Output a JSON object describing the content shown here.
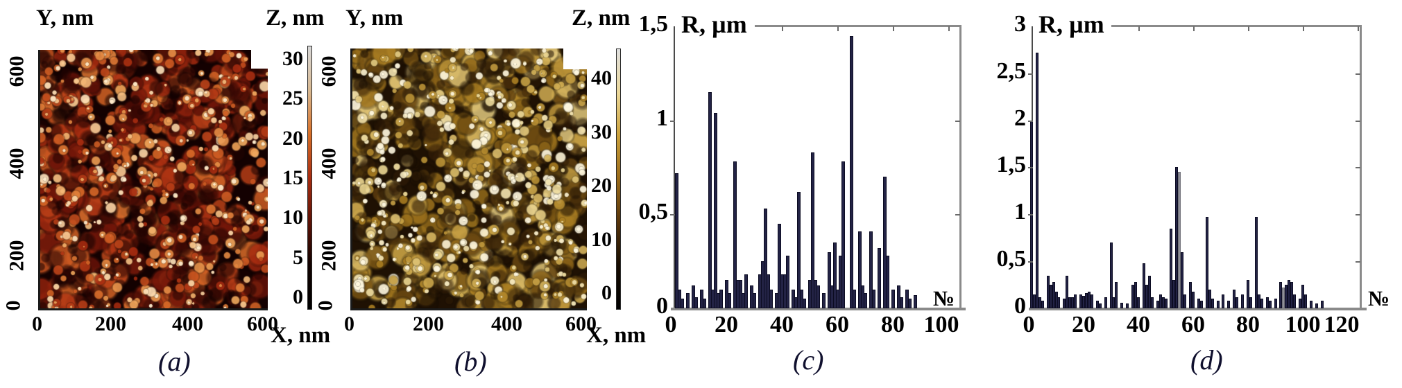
{
  "figure": {
    "description": "AFM surface images and particle radius distributions",
    "background": "#ffffff"
  },
  "panel_a": {
    "caption": "(a)",
    "y_axis_label": "Y, nm",
    "x_axis_label": "X, nm",
    "z_axis_label": "Z, nm",
    "y_ticks": [
      "600",
      "400",
      "200",
      "0"
    ],
    "x_ticks": [
      "0",
      "200",
      "400",
      "600"
    ],
    "z_ticks": [
      "30",
      "25",
      "20",
      "15",
      "10",
      "5",
      "0"
    ],
    "z_range_nm": [
      0,
      30
    ],
    "xy_range_nm": [
      0,
      600
    ],
    "colormap": [
      {
        "t": 0.0,
        "c": "#070000"
      },
      {
        "t": 0.25,
        "c": "#300402"
      },
      {
        "t": 0.45,
        "c": "#6e1408"
      },
      {
        "t": 0.62,
        "c": "#a82c10"
      },
      {
        "t": 0.78,
        "c": "#d86a28"
      },
      {
        "t": 0.9,
        "c": "#eeא85c"
      },
      {
        "t": 1.0,
        "c": "#ffeccc"
      }
    ],
    "colorbar_gradient": [
      "#000000",
      "#120200",
      "#5c1206",
      "#a82c10",
      "#d87028",
      "#d8b890",
      "#d8d8d8"
    ]
  },
  "panel_b": {
    "caption": "(b)",
    "y_axis_label": "Y, nm",
    "x_axis_label": "X, nm",
    "z_axis_label": "Z, nm",
    "y_ticks": [
      "600",
      "400",
      "200",
      "0"
    ],
    "x_ticks": [
      "0",
      "200",
      "400",
      "600"
    ],
    "z_ticks": [
      "40",
      "30",
      "20",
      "10",
      "0"
    ],
    "z_range_nm": [
      0,
      45
    ],
    "xy_range_nm": [
      0,
      600
    ],
    "colormap": [
      {
        "t": 0.0,
        "c": "#120900"
      },
      {
        "t": 0.3,
        "c": "#41260a"
      },
      {
        "t": 0.5,
        "c": "#755112"
      },
      {
        "t": 0.68,
        "c": "#a87c20"
      },
      {
        "t": 0.82,
        "c": "#d0ac50"
      },
      {
        "t": 0.93,
        "c": "#ecd896"
      },
      {
        "t": 1.0,
        "c": "#fff8e0"
      }
    ],
    "colorbar_gradient": [
      "#000000",
      "#170c00",
      "#55330a",
      "#9a6a18",
      "#cca23c",
      "#ecd898",
      "#e0e0e0"
    ]
  },
  "chart_data": [
    {
      "id": "c",
      "type": "bar",
      "caption": "(c)",
      "ylabel": "R, µm",
      "xlabel": "№",
      "ylim": [
        0,
        1.5
      ],
      "xlim": [
        0,
        104
      ],
      "grid": false,
      "bar_color": "#232345",
      "y_ticks": [
        {
          "v": 1.5,
          "label": "1,5"
        },
        {
          "v": 1.0,
          "label": "1"
        },
        {
          "v": 0.5,
          "label": "0,5"
        },
        {
          "v": 0.0,
          "label": "0"
        }
      ],
      "x_ticks": [
        {
          "v": 0,
          "label": "0"
        },
        {
          "v": 20,
          "label": "20"
        },
        {
          "v": 40,
          "label": "40"
        },
        {
          "v": 60,
          "label": "60"
        },
        {
          "v": 80,
          "label": "80"
        },
        {
          "v": 100,
          "label": "100"
        }
      ],
      "bars": [
        [
          2,
          0.72
        ],
        [
          3,
          0.1
        ],
        [
          4,
          0.05
        ],
        [
          6,
          0.08
        ],
        [
          8,
          0.12
        ],
        [
          9,
          0.06
        ],
        [
          11,
          0.1
        ],
        [
          12,
          0.05
        ],
        [
          14,
          1.15
        ],
        [
          15,
          0.1
        ],
        [
          16,
          1.04
        ],
        [
          17,
          0.08
        ],
        [
          18,
          0.1
        ],
        [
          20,
          0.15
        ],
        [
          21,
          0.08
        ],
        [
          23,
          0.78
        ],
        [
          24,
          0.15
        ],
        [
          25,
          0.15
        ],
        [
          26,
          0.08
        ],
        [
          27,
          0.18
        ],
        [
          29,
          0.12
        ],
        [
          30,
          0.08
        ],
        [
          32,
          0.18
        ],
        [
          33,
          0.25
        ],
        [
          34,
          0.53
        ],
        [
          35,
          0.18
        ],
        [
          36,
          0.1
        ],
        [
          38,
          0.08
        ],
        [
          39,
          0.45
        ],
        [
          40,
          0.18
        ],
        [
          41,
          0.18
        ],
        [
          42,
          0.28
        ],
        [
          44,
          0.1
        ],
        [
          45,
          0.06
        ],
        [
          46,
          0.62
        ],
        [
          47,
          0.1
        ],
        [
          48,
          0.05
        ],
        [
          50,
          0.15
        ],
        [
          51,
          0.83
        ],
        [
          52,
          0.15
        ],
        [
          53,
          0.12
        ],
        [
          55,
          0.08
        ],
        [
          57,
          0.3
        ],
        [
          58,
          0.12
        ],
        [
          59,
          0.35
        ],
        [
          60,
          0.1
        ],
        [
          61,
          0.28
        ],
        [
          62,
          0.78
        ],
        [
          65,
          1.45
        ],
        [
          66,
          0.1
        ],
        [
          68,
          0.41
        ],
        [
          69,
          0.12
        ],
        [
          70,
          0.08
        ],
        [
          72,
          0.41
        ],
        [
          73,
          0.1
        ],
        [
          75,
          0.32
        ],
        [
          77,
          0.7
        ],
        [
          78,
          0.28
        ],
        [
          80,
          0.1
        ],
        [
          82,
          0.12
        ],
        [
          83,
          0.06
        ],
        [
          85,
          0.1
        ],
        [
          86,
          0.05
        ],
        [
          88,
          0.07
        ]
      ]
    },
    {
      "id": "d",
      "type": "bar",
      "caption": "(d)",
      "ylabel": "R, µm",
      "xlabel": "№",
      "ylim": [
        0,
        3
      ],
      "xlim": [
        0,
        121
      ],
      "grid": false,
      "bar_color": "#232345",
      "gray_bar_color": "#8f8f98",
      "y_ticks": [
        {
          "v": 3.0,
          "label": "3"
        },
        {
          "v": 2.5,
          "label": "2,5"
        },
        {
          "v": 2.0,
          "label": "2"
        },
        {
          "v": 1.5,
          "label": "1,5"
        },
        {
          "v": 1.0,
          "label": "1"
        },
        {
          "v": 0.5,
          "label": "0,5"
        },
        {
          "v": 0.0,
          "label": "0"
        }
      ],
      "x_ticks": [
        {
          "v": 0,
          "label": "0"
        },
        {
          "v": 20,
          "label": "20"
        },
        {
          "v": 40,
          "label": "40"
        },
        {
          "v": 60,
          "label": "60"
        },
        {
          "v": 80,
          "label": "80"
        },
        {
          "v": 100,
          "label": "100"
        },
        {
          "v": 120,
          "label": "120"
        }
      ],
      "bars": [
        [
          1,
          2.0
        ],
        [
          2,
          0.15
        ],
        [
          3,
          2.72
        ],
        [
          4,
          0.12
        ],
        [
          5,
          0.08
        ],
        [
          7,
          0.35
        ],
        [
          8,
          0.25
        ],
        [
          9,
          0.28
        ],
        [
          10,
          0.18
        ],
        [
          11,
          0.12
        ],
        [
          13,
          0.1
        ],
        [
          14,
          0.35
        ],
        [
          15,
          0.12
        ],
        [
          16,
          0.12
        ],
        [
          17,
          0.15
        ],
        [
          19,
          0.15
        ],
        [
          20,
          0.13
        ],
        [
          21,
          0.16
        ],
        [
          22,
          0.18
        ],
        [
          23,
          0.15
        ],
        [
          25,
          0.08
        ],
        [
          26,
          0.05
        ],
        [
          28,
          0.12
        ],
        [
          30,
          0.7
        ],
        [
          31,
          0.12
        ],
        [
          32,
          0.28
        ],
        [
          34,
          0.06
        ],
        [
          36,
          0.05
        ],
        [
          38,
          0.25
        ],
        [
          39,
          0.28
        ],
        [
          40,
          0.12
        ],
        [
          42,
          0.48
        ],
        [
          43,
          0.25
        ],
        [
          44,
          0.35
        ],
        [
          45,
          0.12
        ],
        [
          47,
          0.08
        ],
        [
          48,
          0.15
        ],
        [
          49,
          0.12
        ],
        [
          50,
          0.1
        ],
        [
          52,
          0.85
        ],
        [
          53,
          0.3
        ],
        [
          54,
          1.5
        ],
        [
          55,
          1.45,
          "gray"
        ],
        [
          56,
          0.6
        ],
        [
          57,
          0.15
        ],
        [
          59,
          0.28
        ],
        [
          60,
          0.18
        ],
        [
          62,
          0.1
        ],
        [
          63,
          0.08
        ],
        [
          65,
          0.97
        ],
        [
          66,
          0.2
        ],
        [
          67,
          0.1
        ],
        [
          69,
          0.08
        ],
        [
          71,
          0.15
        ],
        [
          73,
          0.08
        ],
        [
          75,
          0.2
        ],
        [
          76,
          0.12
        ],
        [
          78,
          0.15
        ],
        [
          80,
          0.3
        ],
        [
          81,
          0.12
        ],
        [
          83,
          0.97
        ],
        [
          84,
          0.15
        ],
        [
          85,
          0.1
        ],
        [
          87,
          0.12
        ],
        [
          88,
          0.08
        ],
        [
          90,
          0.1
        ],
        [
          92,
          0.28
        ],
        [
          93,
          0.22,
          "gray"
        ],
        [
          94,
          0.25
        ],
        [
          95,
          0.3
        ],
        [
          96,
          0.28
        ],
        [
          97,
          0.15
        ],
        [
          99,
          0.1
        ],
        [
          100,
          0.25
        ],
        [
          101,
          0.15
        ],
        [
          103,
          0.08
        ],
        [
          105,
          0.05
        ],
        [
          107,
          0.08
        ]
      ]
    }
  ]
}
